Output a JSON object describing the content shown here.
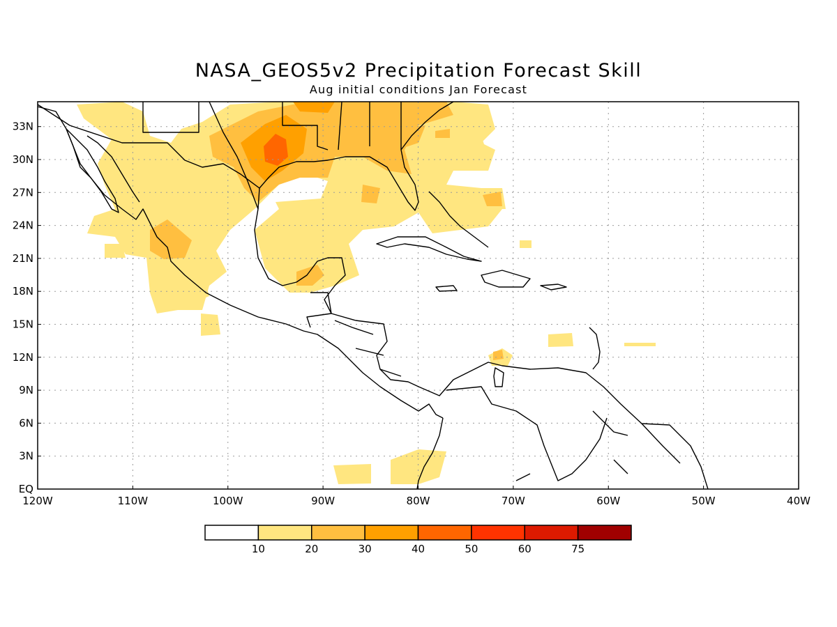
{
  "title": "NASA_GEOS5v2 Precipitation Forecast Skill",
  "subtitle": "Aug initial conditions  Jan Forecast",
  "lat_labels": [
    "EQ",
    "3N",
    "6N",
    "9N",
    "12N",
    "15N",
    "18N",
    "21N",
    "24N",
    "27N",
    "30N",
    "33N"
  ],
  "lon_labels": [
    "120W",
    "110W",
    "100W",
    "90W",
    "80W",
    "70W",
    "60W",
    "50W",
    "40W"
  ],
  "legend": {
    "boundaries": [
      "10",
      "20",
      "30",
      "40",
      "50",
      "60",
      "75"
    ],
    "colors": [
      "#ffffff",
      "#ffe680",
      "#ffbf40",
      "#ffa000",
      "#ff6600",
      "#ff3300",
      "#dd1a00",
      "#a00000"
    ]
  },
  "colors": {
    "level_10_20": "#ffe680",
    "level_20_30": "#ffbf40",
    "level_30_40": "#ffa000",
    "level_40_50": "#ff6600"
  }
}
